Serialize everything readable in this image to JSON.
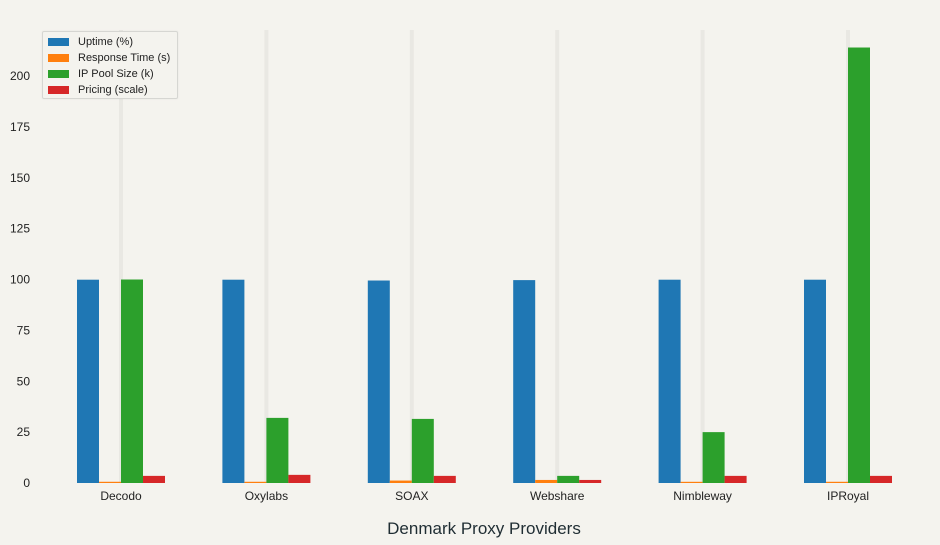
{
  "chart_data": {
    "type": "bar",
    "title": "",
    "xlabel": "Denmark Proxy Providers",
    "ylabel": "",
    "ylim": [
      0,
      225
    ],
    "yticks": [
      0,
      25,
      50,
      75,
      100,
      125,
      150,
      175,
      200
    ],
    "grid": "faint vertical",
    "legend_position": "upper left",
    "categories": [
      "Decodo",
      "Oxylabs",
      "SOAX",
      "Webshare",
      "Nimbleway",
      "IPRoyal"
    ],
    "series": [
      {
        "name": "Uptime (%)",
        "color": "#1f77b4",
        "values": [
          99.9,
          99.9,
          99.5,
          99.7,
          99.9,
          99.9
        ]
      },
      {
        "name": "Response Time (s)",
        "color": "#ff7f0e",
        "values": [
          0.6,
          0.6,
          1.2,
          1.5,
          0.5,
          0.6
        ]
      },
      {
        "name": "IP Pool Size (k)",
        "color": "#2ca02c",
        "values": [
          100,
          32,
          31.5,
          3.5,
          25,
          214
        ]
      },
      {
        "name": "Pricing (scale)",
        "color": "#d62728",
        "values": [
          3.5,
          4,
          3.5,
          1.5,
          3.5,
          3.5
        ]
      }
    ]
  }
}
